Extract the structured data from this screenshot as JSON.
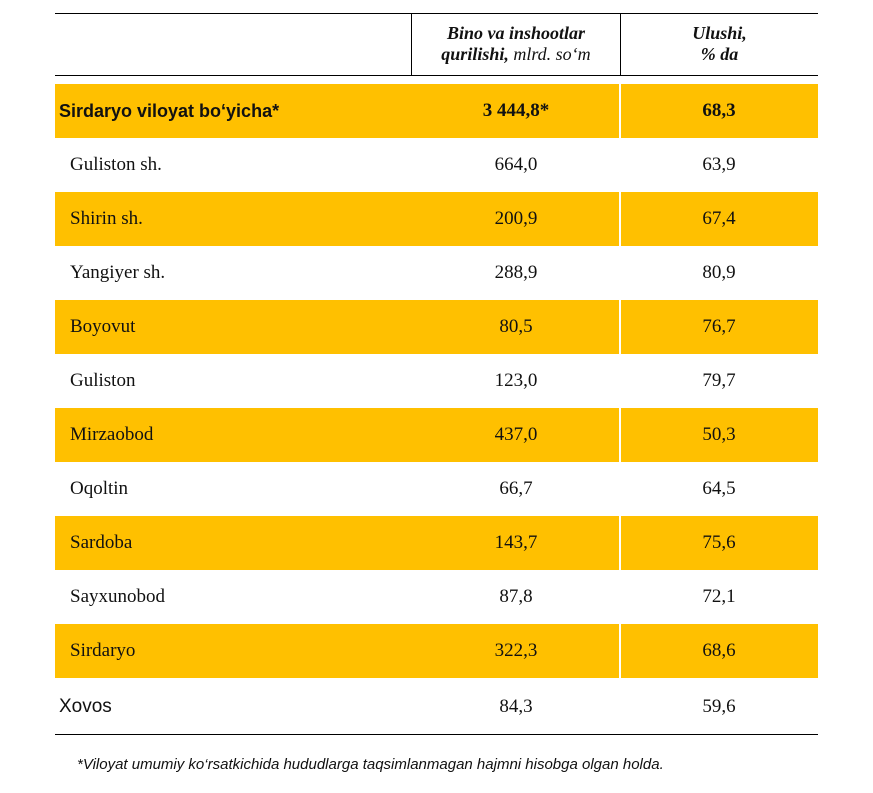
{
  "header": {
    "col_value_bold": "Bino va inshootlar qurilishi,",
    "col_value_unit": "mlrd. so‘m",
    "col_share_line1": "Ulushi,",
    "col_share_line2": "% da"
  },
  "total": {
    "name": "Sirdaryo viloyat bo‘yicha*",
    "value": "3 444,8*",
    "share": "68,3"
  },
  "rows": [
    {
      "name": "Guliston sh.",
      "value": "664,0",
      "share": "63,9"
    },
    {
      "name": "Shirin sh.",
      "value": "200,9",
      "share": "67,4"
    },
    {
      "name": "Yangiyer sh.",
      "value": "288,9",
      "share": "80,9"
    },
    {
      "name": "Boyovut",
      "value": "80,5",
      "share": "76,7"
    },
    {
      "name": "Guliston",
      "value": "123,0",
      "share": "79,7"
    },
    {
      "name": "Mirzaobod",
      "value": "437,0",
      "share": "50,3"
    },
    {
      "name": "Oqoltin",
      "value": "66,7",
      "share": "64,5"
    },
    {
      "name": "Sardoba",
      "value": "143,7",
      "share": "75,6"
    },
    {
      "name": "Sayxunobod",
      "value": "87,8",
      "share": "72,1"
    },
    {
      "name": "Sirdaryo",
      "value": "322,3",
      "share": "68,6"
    },
    {
      "name": "Xovos",
      "value": "84,3",
      "share": "59,6"
    }
  ],
  "footnote": "*Viloyat umumiy ko‘rsatkichida hududlarga taqsimlanmagan hajmni hisobga olgan holda.",
  "colors": {
    "highlight": "#FFC000",
    "rule": "#000000"
  }
}
